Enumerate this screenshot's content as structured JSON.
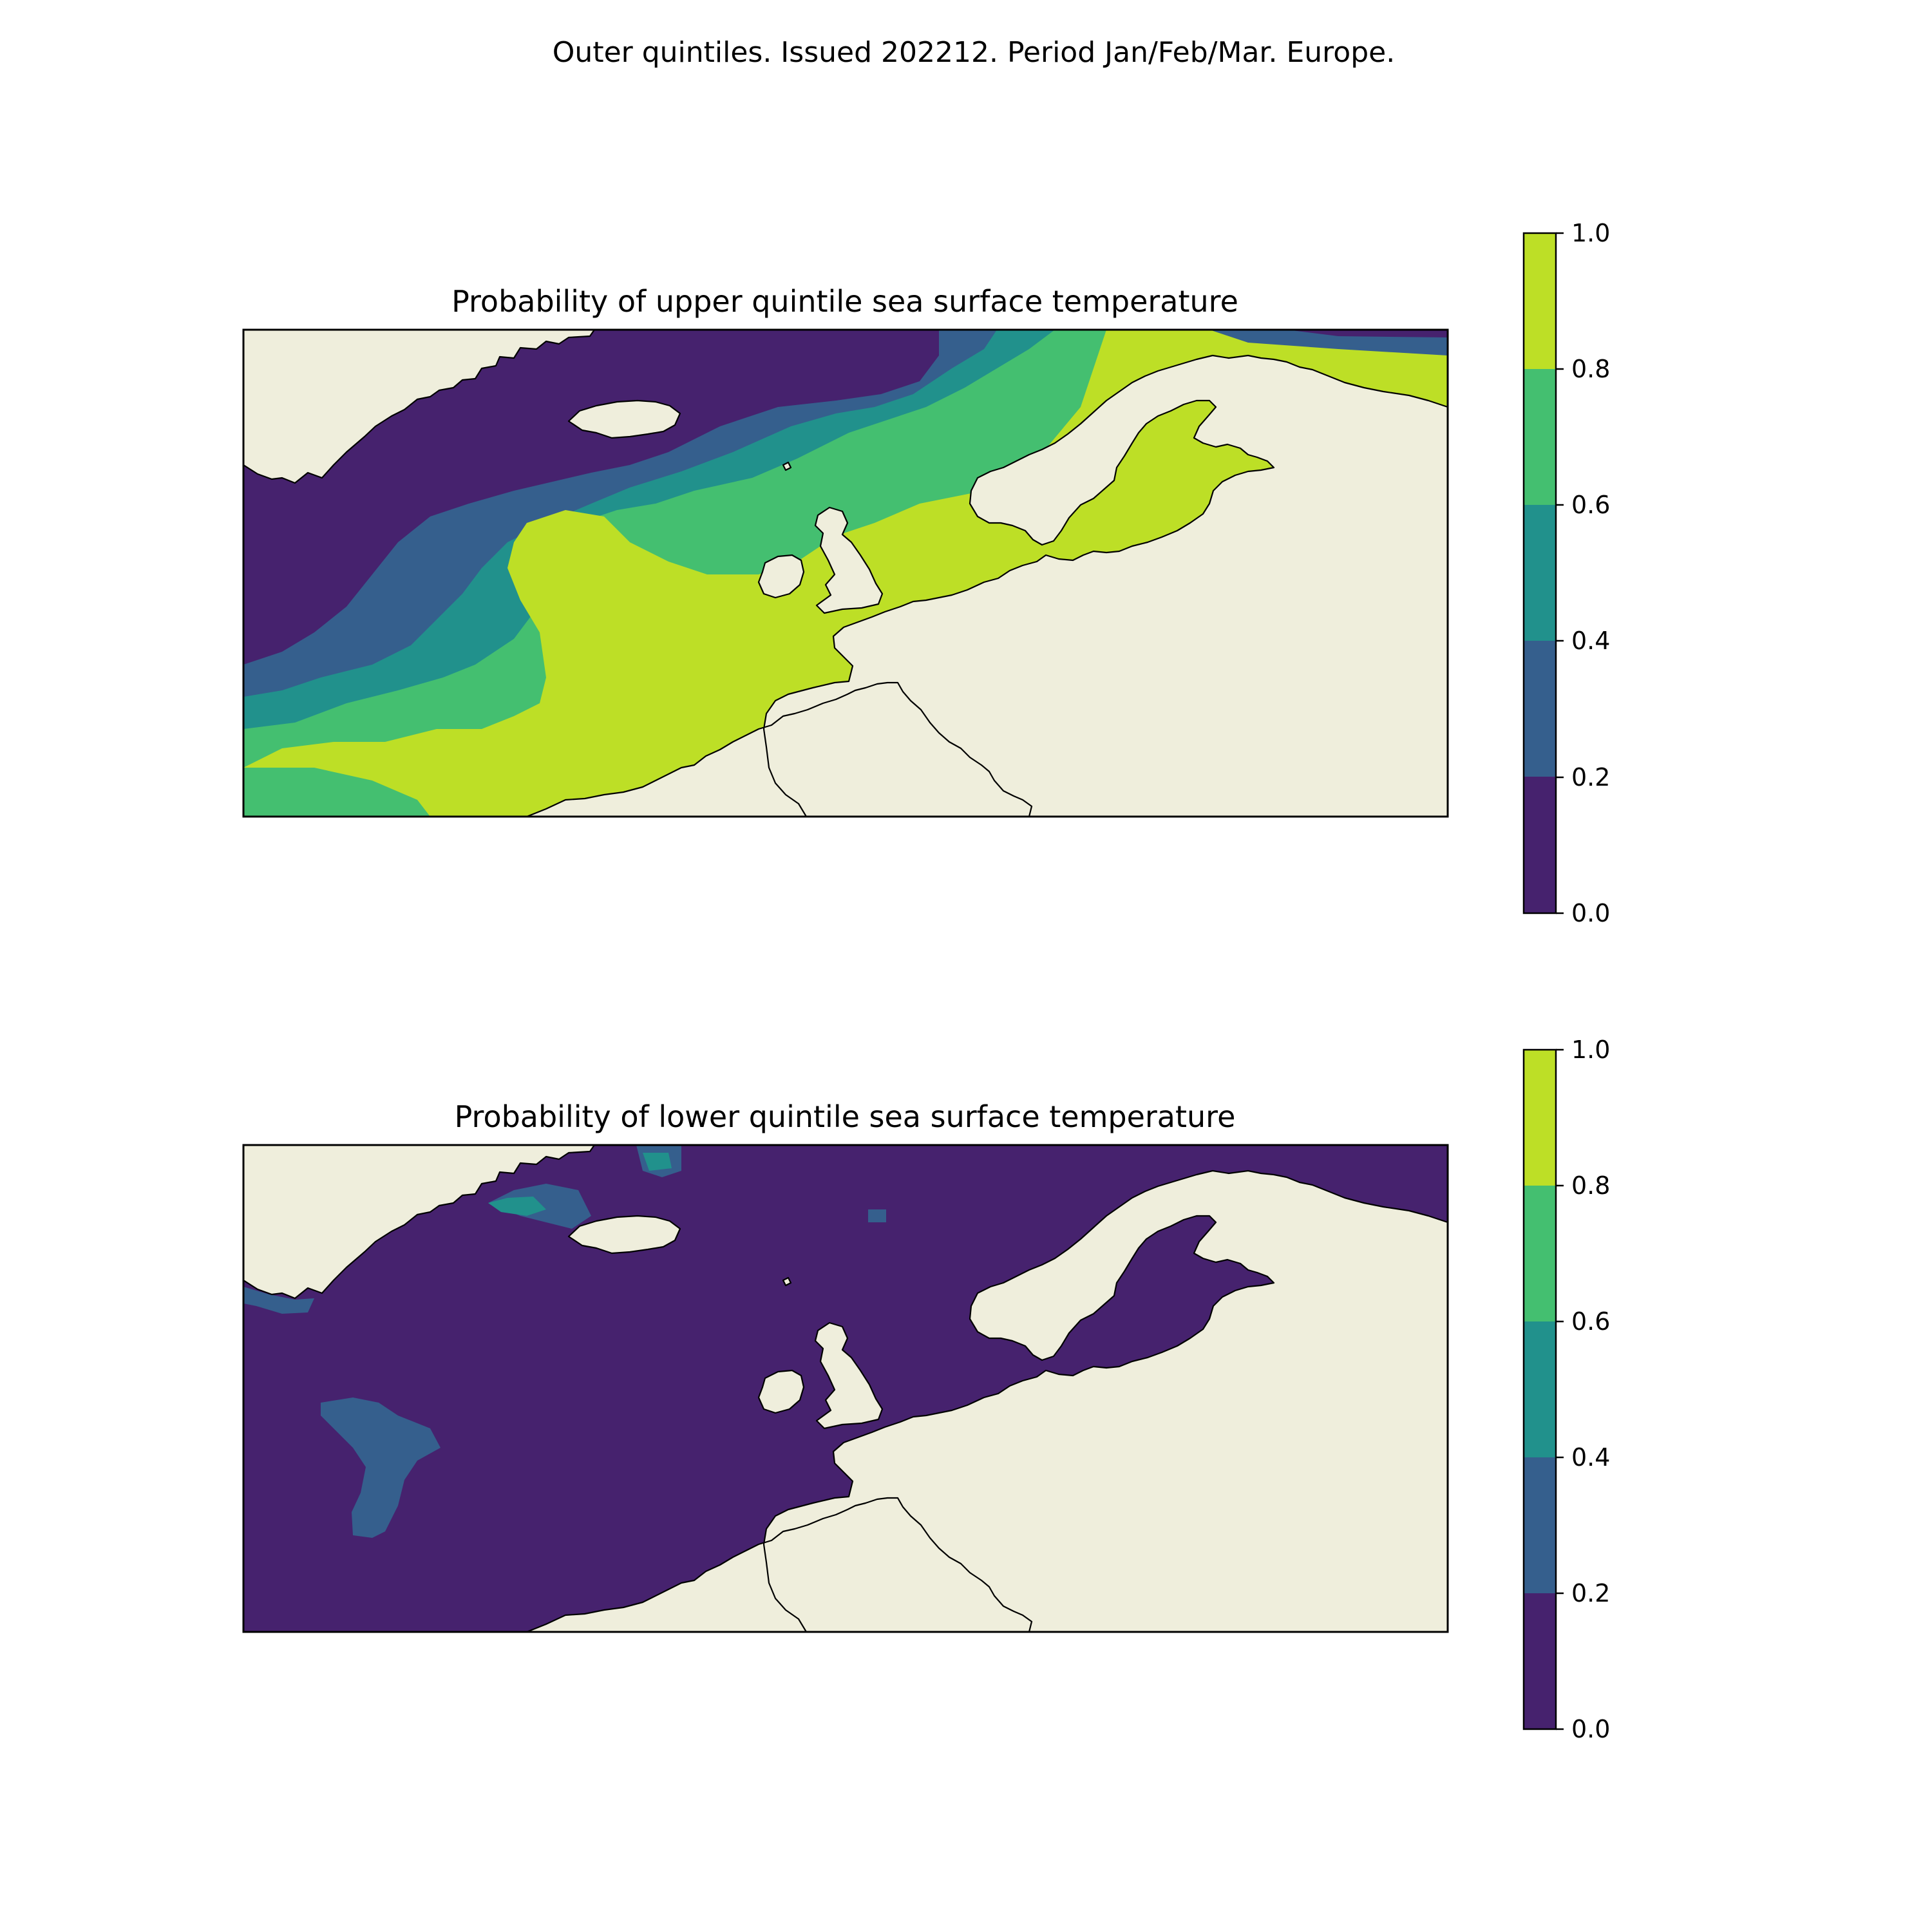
{
  "figure": {
    "title": "Outer quintiles. Issued 202212. Period Jan/Feb/Mar. Europe."
  },
  "colormap": {
    "name": "viridis",
    "colors": [
      "#46226e",
      "#355f8d",
      "#21918c",
      "#44bf70",
      "#bddf26"
    ]
  },
  "land_color": "#efeedc",
  "panels": [
    {
      "title": "Probability of upper quintile sea surface temperature",
      "colorbar": {
        "ticks": [
          "0.0",
          "0.2",
          "0.4",
          "0.6",
          "0.8",
          "1.0"
        ]
      }
    },
    {
      "title": "Probability of lower quintile sea surface temperature",
      "colorbar": {
        "ticks": [
          "0.0",
          "0.2",
          "0.4",
          "0.6",
          "0.8",
          "1.0"
        ]
      }
    }
  ],
  "chart_data": [
    {
      "type": "heatmap",
      "title": "Probability of upper quintile sea surface temperature",
      "levels": [
        0,
        0.2,
        0.4,
        0.6,
        0.8,
        1.0
      ],
      "colorbar_range": [
        0,
        1
      ]
    },
    {
      "type": "heatmap",
      "title": "Probability of lower quintile sea surface temperature",
      "levels": [
        0,
        0.2,
        0.4,
        0.6,
        0.8,
        1.0
      ],
      "colorbar_range": [
        0,
        1
      ]
    }
  ]
}
